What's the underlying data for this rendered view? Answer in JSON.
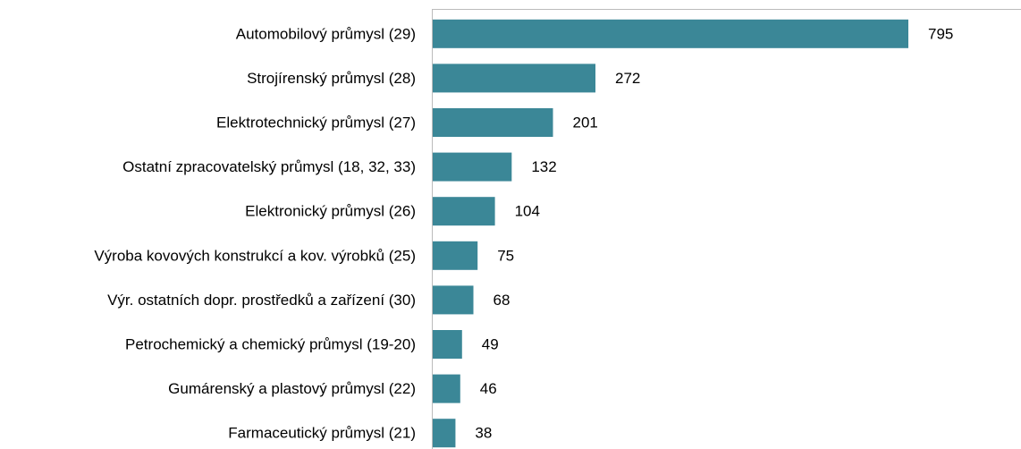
{
  "chart_data": {
    "type": "bar",
    "orientation": "horizontal",
    "categories": [
      "Automobilový průmysl (29)",
      "Strojírenský průmysl (28)",
      "Elektrotechnický průmysl (27)",
      "Ostatní zpracovatelský průmysl (18, 32, 33)",
      "Elektronický průmysl (26)",
      "Výroba kovových konstrukcí a kov. výrobků (25)",
      "Výr. ostatních dopr. prostředků a zařízení (30)",
      "Petrochemický a chemický průmysl (19-20)",
      "Gumárenský a plastový průmysl (22)",
      "Farmaceutický průmysl (21)"
    ],
    "values": [
      795,
      272,
      201,
      132,
      104,
      75,
      68,
      49,
      46,
      38
    ],
    "color": "#3b8797"
  }
}
